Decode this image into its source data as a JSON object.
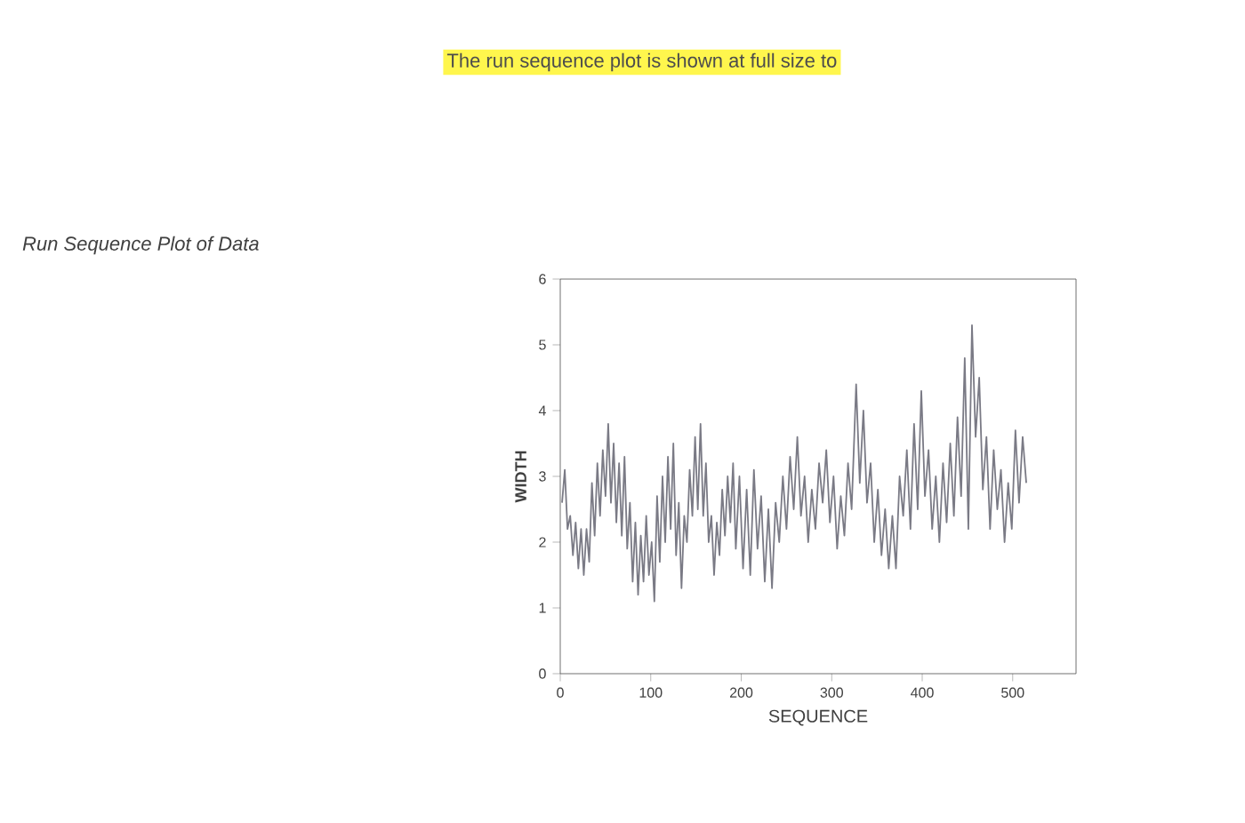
{
  "chart_data": {
    "type": "line",
    "title": "Run Sequence Plot of Data",
    "xlabel": "SEQUENCE",
    "ylabel": "WIDTH",
    "annotations": [
      "The run sequence plot is shown at full size to"
    ],
    "xlim": [
      0,
      570
    ],
    "ylim": [
      0,
      6
    ],
    "xticks": [
      0,
      100,
      200,
      300,
      400,
      500
    ],
    "yticks": [
      0,
      1,
      2,
      3,
      4,
      5,
      6
    ],
    "grid": false,
    "marker": "none",
    "line_style": "solid",
    "series": [
      {
        "color": "#7a7a85",
        "x": [
          2,
          5,
          8,
          11,
          14,
          17,
          20,
          23,
          26,
          29,
          32,
          35,
          38,
          41,
          44,
          47,
          50,
          53,
          56,
          59,
          62,
          65,
          68,
          71,
          74,
          77,
          80,
          83,
          86,
          89,
          92,
          95,
          98,
          101,
          104,
          107,
          110,
          113,
          116,
          119,
          122,
          125,
          128,
          131,
          134,
          137,
          140,
          143,
          146,
          149,
          152,
          155,
          158,
          161,
          164,
          167,
          170,
          173,
          176,
          179,
          182,
          185,
          188,
          191,
          194,
          198,
          202,
          206,
          210,
          214,
          218,
          222,
          226,
          230,
          234,
          238,
          242,
          246,
          250,
          254,
          258,
          262,
          266,
          270,
          274,
          278,
          282,
          286,
          290,
          294,
          298,
          302,
          306,
          310,
          314,
          318,
          322,
          327,
          331,
          335,
          339,
          343,
          347,
          351,
          355,
          359,
          363,
          367,
          371,
          375,
          379,
          383,
          387,
          391,
          395,
          399,
          403,
          407,
          411,
          415,
          419,
          423,
          427,
          431,
          435,
          439,
          443,
          447,
          451,
          455,
          459,
          463,
          467,
          471,
          475,
          479,
          483,
          487,
          491,
          495,
          499,
          503,
          507,
          511,
          515
        ],
        "values": [
          2.6,
          3.1,
          2.2,
          2.4,
          1.8,
          2.3,
          1.6,
          2.2,
          1.5,
          2.2,
          1.7,
          2.9,
          2.1,
          3.2,
          2.4,
          3.4,
          2.7,
          3.8,
          2.6,
          3.5,
          2.3,
          3.2,
          2.1,
          3.3,
          1.9,
          2.6,
          1.4,
          2.3,
          1.2,
          2.1,
          1.4,
          2.4,
          1.5,
          2.0,
          1.1,
          2.7,
          1.7,
          3.0,
          2.0,
          3.3,
          2.2,
          3.5,
          1.8,
          2.6,
          1.3,
          2.4,
          2.0,
          3.1,
          2.4,
          3.6,
          2.5,
          3.8,
          2.4,
          3.2,
          2.0,
          2.4,
          1.5,
          2.3,
          1.8,
          2.8,
          2.1,
          3.0,
          2.3,
          3.2,
          1.9,
          3.0,
          1.6,
          2.8,
          1.5,
          3.1,
          1.9,
          2.7,
          1.4,
          2.5,
          1.3,
          2.6,
          2.0,
          3.0,
          2.2,
          3.3,
          2.5,
          3.6,
          2.4,
          3.0,
          2.0,
          2.8,
          2.2,
          3.2,
          2.6,
          3.4,
          2.3,
          3.0,
          1.9,
          2.7,
          2.1,
          3.2,
          2.5,
          4.4,
          2.9,
          4.0,
          2.6,
          3.2,
          2.0,
          2.8,
          1.8,
          2.5,
          1.6,
          2.4,
          1.6,
          3.0,
          2.4,
          3.4,
          2.2,
          3.8,
          2.5,
          4.3,
          2.7,
          3.4,
          2.2,
          3.0,
          2.0,
          3.2,
          2.3,
          3.5,
          2.4,
          3.9,
          2.7,
          4.8,
          2.2,
          5.3,
          3.6,
          4.5,
          2.8,
          3.6,
          2.2,
          3.4,
          2.5,
          3.1,
          2.0,
          2.9,
          2.2,
          3.7,
          2.6,
          3.6,
          2.9
        ]
      }
    ]
  }
}
